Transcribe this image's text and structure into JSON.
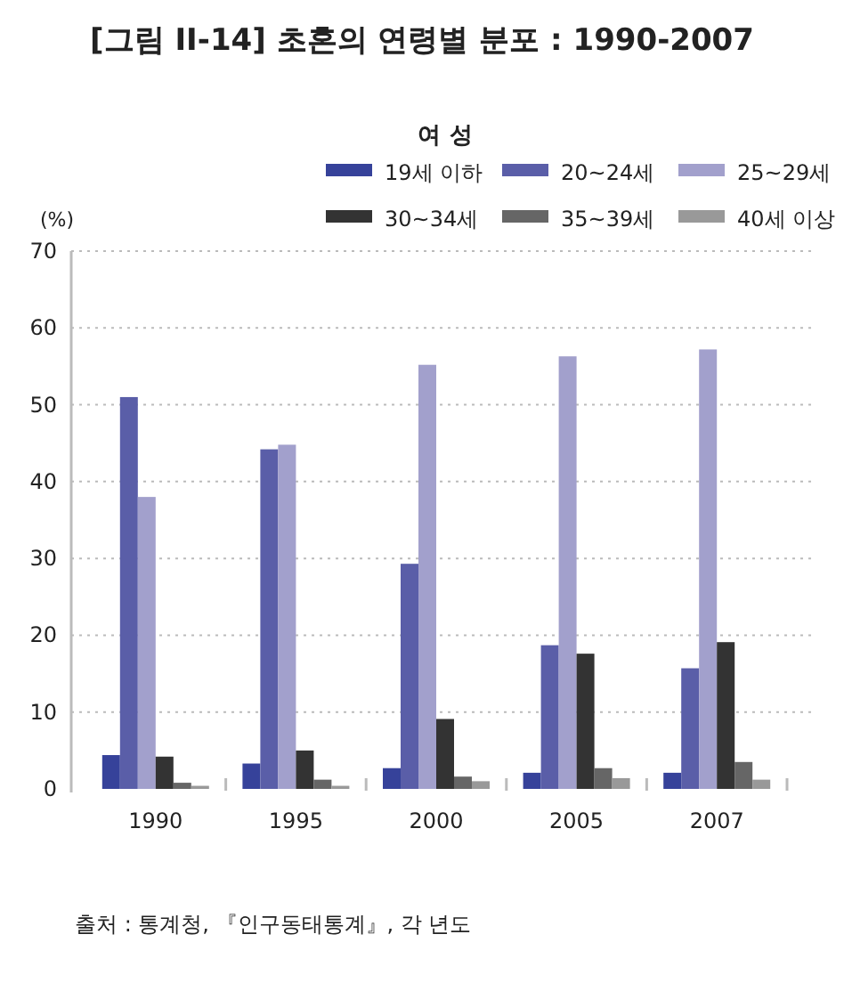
{
  "chart_data": {
    "type": "bar",
    "title": "[그림 II-14] 초혼의 연령별 분포 : 1990-2007",
    "legend_title": "여 성",
    "ylabel": "(%)",
    "categories": [
      "1990",
      "1995",
      "2000",
      "2005",
      "2007"
    ],
    "series": [
      {
        "name": "19세 이하",
        "color": "#36429a",
        "values": [
          4.4,
          3.3,
          2.7,
          2.1,
          2.1
        ]
      },
      {
        "name": "20~24세",
        "color": "#5a5ea8",
        "values": [
          51.0,
          44.2,
          29.3,
          18.7,
          15.7
        ]
      },
      {
        "name": "25~29세",
        "color": "#a2a0cc",
        "values": [
          38.0,
          44.8,
          55.2,
          56.3,
          57.2
        ]
      },
      {
        "name": "30~34세",
        "color": "#333333",
        "values": [
          4.2,
          5.0,
          9.1,
          17.6,
          19.1
        ]
      },
      {
        "name": "35~39세",
        "color": "#666666",
        "values": [
          0.8,
          1.2,
          1.6,
          2.7,
          3.5
        ]
      },
      {
        "name": "40세 이상",
        "color": "#999999",
        "values": [
          0.4,
          0.4,
          1.0,
          1.4,
          1.2
        ]
      }
    ],
    "ylim": [
      0,
      70
    ],
    "yticks": [
      0,
      10,
      20,
      30,
      40,
      50,
      60,
      70
    ],
    "grid": "y",
    "legend": "top",
    "annotations": [
      "출처 : 통계청, 『인구동태통계』, 각 년도"
    ]
  }
}
